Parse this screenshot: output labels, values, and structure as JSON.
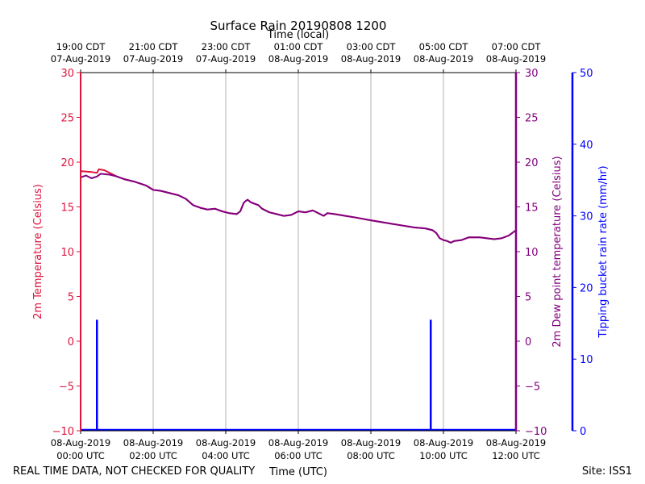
{
  "chart_data": {
    "type": "line",
    "title": "Surface Rain 20190808 1200",
    "top_axis_label": "Time (local)",
    "xlabel": "Time (UTC)",
    "ylabel_left": "2m Temperature (Celsius)",
    "ylabel_right": "2m Dew point temperature (Celsius)",
    "ylabel_rain": "Tipping bucket rain rate (mm/hr)",
    "xlim_hours_utc": [
      0,
      12
    ],
    "ylim_temp": [
      -10,
      30
    ],
    "ylim_rain": [
      0,
      50
    ],
    "temp_ticks": [
      -10,
      -5,
      0,
      5,
      10,
      15,
      20,
      25,
      30
    ],
    "temp_tick_labels": [
      "−10",
      "−5",
      "0",
      "5",
      "10",
      "15",
      "20",
      "25",
      "30"
    ],
    "rain_ticks": [
      0,
      10,
      20,
      30,
      40,
      50
    ],
    "rain_tick_labels": [
      "0",
      "10",
      "20",
      "30",
      "40",
      "50"
    ],
    "bottom_ticks": [
      {
        "hour": 0,
        "line1": "08-Aug-2019",
        "line2": "00:00 UTC"
      },
      {
        "hour": 2,
        "line1": "08-Aug-2019",
        "line2": "02:00 UTC"
      },
      {
        "hour": 4,
        "line1": "08-Aug-2019",
        "line2": "04:00 UTC"
      },
      {
        "hour": 6,
        "line1": "08-Aug-2019",
        "line2": "06:00 UTC"
      },
      {
        "hour": 8,
        "line1": "08-Aug-2019",
        "line2": "08:00 UTC"
      },
      {
        "hour": 10,
        "line1": "08-Aug-2019",
        "line2": "10:00 UTC"
      },
      {
        "hour": 12,
        "line1": "08-Aug-2019",
        "line2": "12:00 UTC"
      }
    ],
    "top_ticks": [
      {
        "hour": 0,
        "line1": "19:00 CDT",
        "line2": "07-Aug-2019"
      },
      {
        "hour": 2,
        "line1": "21:00 CDT",
        "line2": "07-Aug-2019"
      },
      {
        "hour": 4,
        "line1": "23:00 CDT",
        "line2": "07-Aug-2019"
      },
      {
        "hour": 6,
        "line1": "01:00 CDT",
        "line2": "08-Aug-2019"
      },
      {
        "hour": 8,
        "line1": "03:00 CDT",
        "line2": "08-Aug-2019"
      },
      {
        "hour": 10,
        "line1": "05:00 CDT",
        "line2": "08-Aug-2019"
      },
      {
        "hour": 12,
        "line1": "07:00 CDT",
        "line2": "08-Aug-2019"
      }
    ],
    "series": [
      {
        "name": "2m Temperature",
        "color": "#dc143c",
        "points": [
          [
            0,
            19.0
          ],
          [
            0.3,
            18.9
          ],
          [
            0.45,
            18.8
          ],
          [
            0.5,
            19.2
          ],
          [
            0.65,
            19.1
          ],
          [
            0.9,
            18.6
          ],
          [
            1.0,
            18.4
          ],
          [
            1.2,
            18.1
          ],
          [
            1.5,
            17.8
          ],
          [
            1.8,
            17.4
          ],
          [
            2.0,
            16.9
          ],
          [
            2.2,
            16.8
          ],
          [
            2.5,
            16.5
          ],
          [
            2.7,
            16.3
          ],
          [
            2.9,
            15.9
          ],
          [
            3.1,
            15.2
          ],
          [
            3.3,
            14.9
          ],
          [
            3.5,
            14.7
          ],
          [
            3.7,
            14.8
          ],
          [
            3.9,
            14.5
          ],
          [
            4.1,
            14.3
          ],
          [
            4.3,
            14.2
          ],
          [
            4.4,
            14.5
          ],
          [
            4.5,
            15.5
          ],
          [
            4.6,
            15.8
          ],
          [
            4.7,
            15.5
          ],
          [
            4.9,
            15.2
          ],
          [
            5.0,
            14.8
          ],
          [
            5.2,
            14.4
          ],
          [
            5.4,
            14.2
          ],
          [
            5.6,
            14.0
          ],
          [
            5.8,
            14.1
          ],
          [
            6.0,
            14.5
          ],
          [
            6.2,
            14.4
          ],
          [
            6.4,
            14.6
          ],
          [
            6.6,
            14.2
          ],
          [
            6.7,
            14.0
          ],
          [
            6.8,
            14.3
          ],
          [
            7.0,
            14.2
          ],
          [
            7.3,
            14.0
          ],
          [
            7.6,
            13.8
          ],
          [
            8.0,
            13.5
          ],
          [
            8.3,
            13.3
          ],
          [
            8.6,
            13.1
          ],
          [
            8.9,
            12.9
          ],
          [
            9.2,
            12.7
          ],
          [
            9.5,
            12.6
          ],
          [
            9.7,
            12.4
          ],
          [
            9.8,
            12.1
          ],
          [
            9.9,
            11.5
          ],
          [
            10.0,
            11.3
          ],
          [
            10.1,
            11.2
          ],
          [
            10.2,
            11.0
          ],
          [
            10.3,
            11.2
          ],
          [
            10.5,
            11.3
          ],
          [
            10.7,
            11.6
          ],
          [
            11.0,
            11.6
          ],
          [
            11.2,
            11.5
          ],
          [
            11.4,
            11.4
          ],
          [
            11.6,
            11.5
          ],
          [
            11.8,
            11.8
          ],
          [
            12.0,
            12.4
          ]
        ]
      },
      {
        "name": "2m Dew point temperature",
        "color": "#800080",
        "points": [
          [
            0,
            18.3
          ],
          [
            0.15,
            18.5
          ],
          [
            0.3,
            18.2
          ],
          [
            0.45,
            18.4
          ],
          [
            0.55,
            18.7
          ],
          [
            0.8,
            18.6
          ],
          [
            1.0,
            18.4
          ],
          [
            1.2,
            18.1
          ],
          [
            1.5,
            17.8
          ],
          [
            1.8,
            17.4
          ],
          [
            2.0,
            16.9
          ],
          [
            2.2,
            16.8
          ],
          [
            2.5,
            16.5
          ],
          [
            2.7,
            16.3
          ],
          [
            2.9,
            15.9
          ],
          [
            3.1,
            15.2
          ],
          [
            3.3,
            14.9
          ],
          [
            3.5,
            14.7
          ],
          [
            3.7,
            14.8
          ],
          [
            3.9,
            14.5
          ],
          [
            4.1,
            14.3
          ],
          [
            4.3,
            14.2
          ],
          [
            4.4,
            14.5
          ],
          [
            4.5,
            15.5
          ],
          [
            4.6,
            15.8
          ],
          [
            4.7,
            15.5
          ],
          [
            4.9,
            15.2
          ],
          [
            5.0,
            14.8
          ],
          [
            5.2,
            14.4
          ],
          [
            5.4,
            14.2
          ],
          [
            5.6,
            14.0
          ],
          [
            5.8,
            14.1
          ],
          [
            6.0,
            14.5
          ],
          [
            6.2,
            14.4
          ],
          [
            6.4,
            14.6
          ],
          [
            6.6,
            14.2
          ],
          [
            6.7,
            14.0
          ],
          [
            6.8,
            14.3
          ],
          [
            7.0,
            14.2
          ],
          [
            7.3,
            14.0
          ],
          [
            7.6,
            13.8
          ],
          [
            8.0,
            13.5
          ],
          [
            8.3,
            13.3
          ],
          [
            8.6,
            13.1
          ],
          [
            8.9,
            12.9
          ],
          [
            9.2,
            12.7
          ],
          [
            9.5,
            12.6
          ],
          [
            9.7,
            12.4
          ],
          [
            9.8,
            12.1
          ],
          [
            9.9,
            11.5
          ],
          [
            10.0,
            11.3
          ],
          [
            10.1,
            11.2
          ],
          [
            10.2,
            11.0
          ],
          [
            10.3,
            11.2
          ],
          [
            10.5,
            11.3
          ],
          [
            10.7,
            11.6
          ],
          [
            11.0,
            11.6
          ],
          [
            11.2,
            11.5
          ],
          [
            11.4,
            11.4
          ],
          [
            11.6,
            11.5
          ],
          [
            11.8,
            11.8
          ],
          [
            12.0,
            12.4
          ]
        ]
      },
      {
        "name": "Tipping bucket rain rate",
        "color": "#0000ff",
        "spikes": [
          {
            "hour": 0.45,
            "value": 15.5
          },
          {
            "hour": 9.65,
            "value": 15.5
          }
        ]
      }
    ]
  },
  "footer": {
    "disclaimer": "REAL TIME DATA, NOT CHECKED FOR QUALITY",
    "site": "Site: ISS1"
  }
}
